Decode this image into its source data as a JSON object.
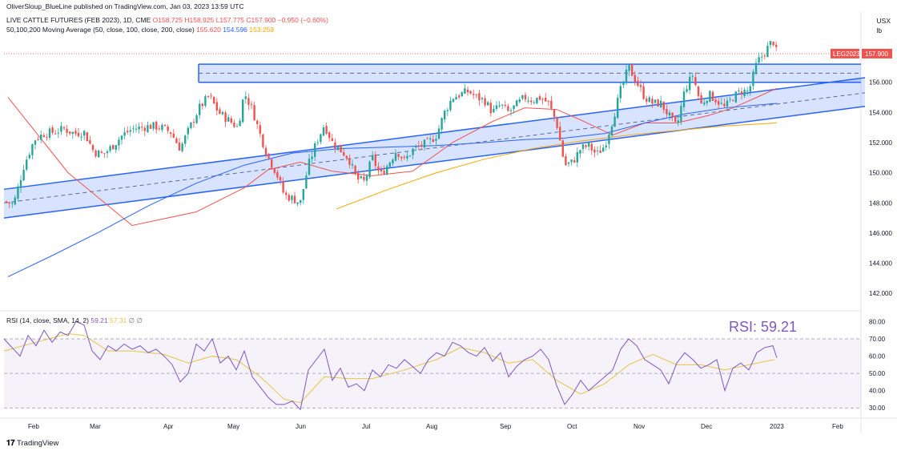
{
  "header": {
    "published": "OliverSloup_BlueLine published on TradingView.com, Jan 03, 2023 13:59 UTC"
  },
  "legend": {
    "symbol": "LIVE CATTLE FUTURES (FEB 2023), 1D, CME",
    "ohlc": "O158.725 H158.925 L157.775 C157.900 −0.950 (−0.60%)",
    "ma_label": "50,100,200 Moving Average (50, close, 100, close, 200, close)",
    "ma50": "155.620",
    "ma100": "154.596",
    "ma200": "153.259"
  },
  "currency": {
    "line1": "USX",
    "line2": "lb"
  },
  "price_tag": {
    "name": "LEG2023",
    "value": "157.900"
  },
  "rsi": {
    "label": "RSI (14, close, SMA, 14, 2)",
    "value": "59.21",
    "sma": "57.31",
    "extra": "∅ ∅",
    "big_label": "RSI: 59.21"
  },
  "footer": {
    "logo": "TradingView"
  },
  "colors": {
    "up": "#26a69a",
    "down": "#ef5350",
    "channel": "#2962ff",
    "ma50": "#ef5350",
    "ma100": "#2962ff",
    "ma200": "#f7a600",
    "rsi": "#7e57c2",
    "rsi_sma": "#e8c34a"
  },
  "chart_data": {
    "type": "candlestick",
    "x_labels": [
      "Feb",
      "Mar",
      "Apr",
      "May",
      "Jun",
      "Jul",
      "Aug",
      "Sep",
      "Oct",
      "Nov",
      "Dec",
      "2023",
      "Feb"
    ],
    "y_ticks": [
      "158.000",
      "156.000",
      "154.000",
      "152.000",
      "150.000",
      "148.000",
      "146.000",
      "144.000",
      "142.000"
    ],
    "ylim": [
      141,
      160.5
    ],
    "rsi_ticks": [
      "80.00",
      "70.00",
      "60.00",
      "50.00",
      "40.00",
      "30.00"
    ],
    "rsi_lim": [
      25,
      83
    ],
    "last_price": 157.9,
    "horizontal_zone": [
      156,
      157.2
    ],
    "close_path": [
      [
        0,
        148.1
      ],
      [
        12,
        147.9
      ],
      [
        25,
        150.5
      ],
      [
        38,
        152.2
      ],
      [
        50,
        152.6
      ],
      [
        62,
        152.7
      ],
      [
        75,
        152.9
      ],
      [
        88,
        152.6
      ],
      [
        100,
        152.7
      ],
      [
        112,
        151.4
      ],
      [
        124,
        151.2
      ],
      [
        136,
        151.8
      ],
      [
        148,
        152.5
      ],
      [
        160,
        152.9
      ],
      [
        172,
        153.0
      ],
      [
        184,
        153.1
      ],
      [
        196,
        153.0
      ],
      [
        208,
        152.7
      ],
      [
        220,
        151.6
      ],
      [
        232,
        153.0
      ],
      [
        244,
        154.3
      ],
      [
        256,
        155.1
      ],
      [
        268,
        154.0
      ],
      [
        280,
        153.5
      ],
      [
        292,
        153.0
      ],
      [
        300,
        155.3
      ],
      [
        310,
        154.2
      ],
      [
        320,
        152.5
      ],
      [
        330,
        151.0
      ],
      [
        340,
        150.0
      ],
      [
        350,
        148.5
      ],
      [
        360,
        148.3
      ],
      [
        370,
        148.0
      ],
      [
        380,
        150.5
      ],
      [
        390,
        152.0
      ],
      [
        400,
        153.2
      ],
      [
        410,
        152.0
      ],
      [
        420,
        151.5
      ],
      [
        430,
        151.0
      ],
      [
        440,
        149.6
      ],
      [
        450,
        149.4
      ],
      [
        460,
        151.0
      ],
      [
        470,
        149.8
      ],
      [
        480,
        150.6
      ],
      [
        490,
        151.5
      ],
      [
        500,
        150.8
      ],
      [
        510,
        151.5
      ],
      [
        520,
        151.8
      ],
      [
        530,
        152.0
      ],
      [
        540,
        152.5
      ],
      [
        550,
        154.0
      ],
      [
        560,
        155.0
      ],
      [
        570,
        155.2
      ],
      [
        580,
        155.4
      ],
      [
        590,
        155.0
      ],
      [
        600,
        154.8
      ],
      [
        610,
        154.0
      ],
      [
        620,
        154.5
      ],
      [
        630,
        154.0
      ],
      [
        640,
        154.5
      ],
      [
        650,
        155.0
      ],
      [
        660,
        154.8
      ],
      [
        670,
        155.0
      ],
      [
        680,
        154.6
      ],
      [
        690,
        153.3
      ],
      [
        700,
        150.5
      ],
      [
        710,
        150.7
      ],
      [
        720,
        151.6
      ],
      [
        730,
        151.8
      ],
      [
        740,
        151.2
      ],
      [
        750,
        151.8
      ],
      [
        760,
        153.5
      ],
      [
        770,
        155.5
      ],
      [
        780,
        157.0
      ],
      [
        790,
        156.0
      ],
      [
        800,
        155.0
      ],
      [
        810,
        154.6
      ],
      [
        820,
        154.6
      ],
      [
        830,
        153.8
      ],
      [
        840,
        153.0
      ],
      [
        850,
        155.5
      ],
      [
        860,
        156.5
      ],
      [
        870,
        154.5
      ],
      [
        880,
        155.2
      ],
      [
        890,
        154.8
      ],
      [
        900,
        154.3
      ],
      [
        910,
        155.0
      ],
      [
        920,
        155.4
      ],
      [
        930,
        155.4
      ],
      [
        940,
        157.3
      ],
      [
        950,
        158.0
      ],
      [
        960,
        158.8
      ],
      [
        965,
        157.9
      ]
    ],
    "rsi_path": [
      [
        0,
        70
      ],
      [
        10,
        65
      ],
      [
        20,
        60
      ],
      [
        30,
        72
      ],
      [
        40,
        66
      ],
      [
        50,
        75
      ],
      [
        60,
        68
      ],
      [
        70,
        74
      ],
      [
        80,
        72
      ],
      [
        90,
        80
      ],
      [
        100,
        78
      ],
      [
        110,
        63
      ],
      [
        120,
        58
      ],
      [
        130,
        66
      ],
      [
        140,
        63
      ],
      [
        150,
        67
      ],
      [
        160,
        64
      ],
      [
        170,
        66
      ],
      [
        180,
        62
      ],
      [
        190,
        64
      ],
      [
        200,
        60
      ],
      [
        210,
        55
      ],
      [
        220,
        45
      ],
      [
        230,
        50
      ],
      [
        240,
        67
      ],
      [
        250,
        63
      ],
      [
        260,
        70
      ],
      [
        270,
        56
      ],
      [
        280,
        60
      ],
      [
        290,
        52
      ],
      [
        300,
        63
      ],
      [
        310,
        48
      ],
      [
        320,
        42
      ],
      [
        330,
        36
      ],
      [
        340,
        32
      ],
      [
        350,
        32
      ],
      [
        360,
        34
      ],
      [
        370,
        29
      ],
      [
        380,
        52
      ],
      [
        390,
        58
      ],
      [
        400,
        64
      ],
      [
        410,
        46
      ],
      [
        420,
        53
      ],
      [
        430,
        42
      ],
      [
        440,
        44
      ],
      [
        450,
        40
      ],
      [
        460,
        52
      ],
      [
        470,
        48
      ],
      [
        480,
        55
      ],
      [
        490,
        53
      ],
      [
        500,
        58
      ],
      [
        510,
        54
      ],
      [
        520,
        50
      ],
      [
        530,
        58
      ],
      [
        540,
        62
      ],
      [
        550,
        60
      ],
      [
        560,
        68
      ],
      [
        570,
        66
      ],
      [
        580,
        62
      ],
      [
        590,
        60
      ],
      [
        600,
        65
      ],
      [
        610,
        57
      ],
      [
        620,
        62
      ],
      [
        630,
        48
      ],
      [
        640,
        54
      ],
      [
        650,
        58
      ],
      [
        660,
        60
      ],
      [
        670,
        64
      ],
      [
        680,
        58
      ],
      [
        690,
        43
      ],
      [
        700,
        32
      ],
      [
        710,
        38
      ],
      [
        720,
        46
      ],
      [
        730,
        40
      ],
      [
        740,
        44
      ],
      [
        750,
        48
      ],
      [
        760,
        52
      ],
      [
        770,
        64
      ],
      [
        780,
        70
      ],
      [
        790,
        66
      ],
      [
        800,
        58
      ],
      [
        810,
        55
      ],
      [
        820,
        52
      ],
      [
        830,
        44
      ],
      [
        840,
        56
      ],
      [
        850,
        62
      ],
      [
        860,
        58
      ],
      [
        870,
        53
      ],
      [
        880,
        55
      ],
      [
        890,
        58
      ],
      [
        900,
        40
      ],
      [
        910,
        53
      ],
      [
        920,
        56
      ],
      [
        930,
        52
      ],
      [
        940,
        62
      ],
      [
        950,
        65
      ],
      [
        960,
        66
      ],
      [
        965,
        59
      ]
    ],
    "rsi_sma_path": [
      [
        0,
        63
      ],
      [
        40,
        68
      ],
      [
        80,
        73
      ],
      [
        100,
        72
      ],
      [
        130,
        63
      ],
      [
        160,
        63
      ],
      [
        200,
        61
      ],
      [
        230,
        56
      ],
      [
        260,
        60
      ],
      [
        290,
        58
      ],
      [
        320,
        48
      ],
      [
        350,
        35
      ],
      [
        370,
        33
      ],
      [
        400,
        48
      ],
      [
        430,
        47
      ],
      [
        460,
        47
      ],
      [
        500,
        52
      ],
      [
        540,
        58
      ],
      [
        570,
        65
      ],
      [
        600,
        62
      ],
      [
        630,
        56
      ],
      [
        660,
        58
      ],
      [
        690,
        46
      ],
      [
        720,
        38
      ],
      [
        750,
        44
      ],
      [
        780,
        55
      ],
      [
        810,
        61
      ],
      [
        840,
        55
      ],
      [
        870,
        55
      ],
      [
        900,
        52
      ],
      [
        930,
        55
      ],
      [
        962,
        58
      ]
    ],
    "ma50_path": [
      [
        5,
        155
      ],
      [
        80,
        150
      ],
      [
        160,
        146.5
      ],
      [
        240,
        147.4
      ],
      [
        300,
        149.0
      ],
      [
        330,
        150.2
      ],
      [
        370,
        150.7
      ],
      [
        410,
        150.1
      ],
      [
        460,
        149.8
      ],
      [
        510,
        150.1
      ],
      [
        560,
        152.0
      ],
      [
        610,
        153.4
      ],
      [
        650,
        154.3
      ],
      [
        690,
        154.2
      ],
      [
        720,
        153.5
      ],
      [
        760,
        152.5
      ],
      [
        800,
        153.3
      ],
      [
        840,
        153.3
      ],
      [
        880,
        153.8
      ],
      [
        910,
        154.3
      ],
      [
        940,
        155.0
      ],
      [
        965,
        155.6
      ]
    ],
    "ma100_path": [
      [
        5,
        143.1
      ],
      [
        60,
        144.5
      ],
      [
        120,
        146.1
      ],
      [
        180,
        147.8
      ],
      [
        240,
        149.3
      ],
      [
        300,
        150.5
      ],
      [
        360,
        151.3
      ],
      [
        420,
        151.6
      ],
      [
        480,
        151.7
      ],
      [
        540,
        151.8
      ],
      [
        600,
        152.0
      ],
      [
        650,
        152.2
      ],
      [
        700,
        152.3
      ],
      [
        750,
        152.6
      ],
      [
        800,
        153.3
      ],
      [
        850,
        153.9
      ],
      [
        900,
        154.3
      ],
      [
        965,
        154.6
      ]
    ],
    "ma200_path": [
      [
        415,
        147.6
      ],
      [
        480,
        148.9
      ],
      [
        540,
        150.0
      ],
      [
        600,
        150.9
      ],
      [
        660,
        151.6
      ],
      [
        720,
        152.1
      ],
      [
        780,
        152.5
      ],
      [
        840,
        152.8
      ],
      [
        900,
        153.1
      ],
      [
        965,
        153.3
      ]
    ],
    "channel": {
      "upper": [
        [
          0,
          148.9
        ],
        [
          1075,
          156.3
        ]
      ],
      "mid": [
        [
          0,
          148.0
        ],
        [
          1075,
          155.3
        ]
      ],
      "lower": [
        [
          0,
          147.0
        ],
        [
          1075,
          154.4
        ]
      ]
    }
  }
}
